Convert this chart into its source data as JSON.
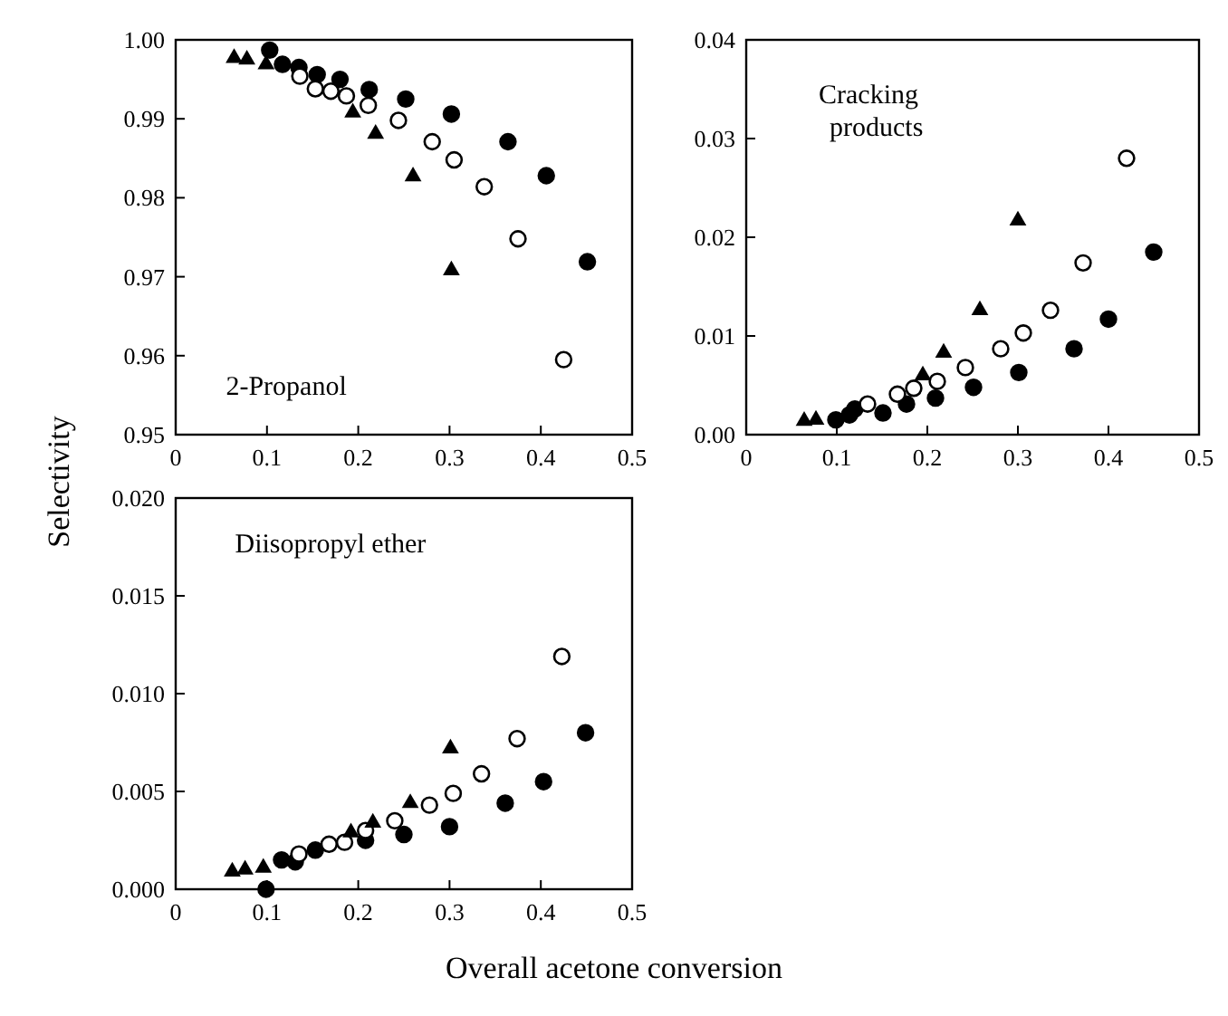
{
  "chart_data": [
    {
      "type": "scatter",
      "ylabel": "Selectivity",
      "xlim": [
        0,
        0.5
      ],
      "xticks": [
        0,
        0.1,
        0.2,
        0.3,
        0.4,
        0.5
      ],
      "ylim": [
        0.95,
        1.0
      ],
      "yticks": [
        {
          "value": 0.95,
          "label": "0.95"
        },
        {
          "value": 0.96,
          "label": "0.96"
        },
        {
          "value": 0.97,
          "label": "0.97"
        },
        {
          "value": 0.98,
          "label": "0.98"
        },
        {
          "value": 0.99,
          "label": "0.99"
        },
        {
          "value": 1.0,
          "label": "1.00"
        }
      ],
      "annotations": [
        "2-Propanol"
      ],
      "series": [
        {
          "color": "#000000",
          "marker": "circle",
          "x": [
            0.103,
            0.117,
            0.135,
            0.155,
            0.18,
            0.212,
            0.252,
            0.302,
            0.364,
            0.406,
            0.451
          ],
          "values": [
            0.9987,
            0.9969,
            0.9965,
            0.9956,
            0.995,
            0.9937,
            0.9925,
            0.9906,
            0.9871,
            0.9828,
            0.9719
          ]
        },
        {
          "color": "#ffffff",
          "marker": "circle",
          "x": [
            0.136,
            0.153,
            0.17,
            0.187,
            0.211,
            0.244,
            0.281,
            0.305,
            0.338,
            0.375,
            0.425
          ],
          "values": [
            0.9954,
            0.9938,
            0.9935,
            0.9929,
            0.9917,
            0.9898,
            0.9871,
            0.9848,
            0.9814,
            0.9748,
            0.9595
          ]
        },
        {
          "color": "#000000",
          "marker": "triangle",
          "x": [
            0.064,
            0.078,
            0.099,
            0.194,
            0.219,
            0.26,
            0.302
          ],
          "values": [
            0.9977,
            0.9975,
            0.9969,
            0.9908,
            0.9881,
            0.9827,
            0.9708
          ]
        }
      ]
    },
    {
      "type": "scatter",
      "xlim": [
        0,
        0.5
      ],
      "xticks": [
        0,
        0.1,
        0.2,
        0.3,
        0.4,
        0.5
      ],
      "ylim": [
        0,
        0.04
      ],
      "yticks": [
        {
          "value": 0,
          "label": "0.00"
        },
        {
          "value": 0.01,
          "label": "0.01"
        },
        {
          "value": 0.02,
          "label": "0.02"
        },
        {
          "value": 0.03,
          "label": "0.03"
        },
        {
          "value": 0.04,
          "label": "0.04"
        }
      ],
      "annotations": [
        "Cracking\nproducts"
      ],
      "series": [
        {
          "color": "#000000",
          "marker": "circle",
          "x": [
            0.099,
            0.114,
            0.12,
            0.151,
            0.177,
            0.209,
            0.251,
            0.301,
            0.362,
            0.4,
            0.45
          ],
          "values": [
            0.0015,
            0.002,
            0.0026,
            0.0022,
            0.0031,
            0.0037,
            0.0048,
            0.0063,
            0.0087,
            0.0117,
            0.0185
          ]
        },
        {
          "color": "#ffffff",
          "marker": "circle",
          "x": [
            0.134,
            0.167,
            0.185,
            0.211,
            0.242,
            0.281,
            0.306,
            0.336,
            0.372,
            0.42
          ],
          "values": [
            0.0031,
            0.0041,
            0.0047,
            0.0054,
            0.0068,
            0.0087,
            0.0103,
            0.0126,
            0.0174,
            0.028
          ]
        },
        {
          "color": "#000000",
          "marker": "triangle",
          "x": [
            0.064,
            0.077,
            0.195,
            0.218,
            0.258,
            0.3
          ],
          "values": [
            0.0014,
            0.0015,
            0.006,
            0.0083,
            0.0126,
            0.0217
          ]
        }
      ]
    },
    {
      "type": "scatter",
      "xlabel": "Overall acetone conversion",
      "xlim": [
        0,
        0.5
      ],
      "xticks": [
        0,
        0.1,
        0.2,
        0.3,
        0.4,
        0.5
      ],
      "ylim": [
        0,
        0.02
      ],
      "yticks": [
        {
          "value": 0,
          "label": "0.000"
        },
        {
          "value": 0.005,
          "label": "0.005"
        },
        {
          "value": 0.01,
          "label": "0.010"
        },
        {
          "value": 0.015,
          "label": "0.015"
        },
        {
          "value": 0.02,
          "label": "0.020"
        }
      ],
      "annotations": [
        "Diisopropyl ether"
      ],
      "series": [
        {
          "color": "#000000",
          "marker": "circle",
          "x": [
            0.099,
            0.116,
            0.131,
            0.153,
            0.208,
            0.25,
            0.3,
            0.361,
            0.403,
            0.449
          ],
          "values": [
            0,
            0.0015,
            0.0014,
            0.002,
            0.0025,
            0.0028,
            0.0032,
            0.0044,
            0.0055,
            0.008
          ]
        },
        {
          "color": "#ffffff",
          "marker": "circle",
          "x": [
            0.135,
            0.168,
            0.185,
            0.208,
            0.24,
            0.278,
            0.304,
            0.335,
            0.374,
            0.423
          ],
          "values": [
            0.0018,
            0.0023,
            0.0024,
            0.003,
            0.0035,
            0.0043,
            0.0049,
            0.0059,
            0.0077,
            0.0119
          ]
        },
        {
          "color": "#000000",
          "marker": "triangle",
          "x": [
            0.062,
            0.076,
            0.096,
            0.192,
            0.216,
            0.257,
            0.301
          ],
          "values": [
            0.0009,
            0.001,
            0.0011,
            0.0029,
            0.0034,
            0.0044,
            0.0072
          ]
        }
      ]
    }
  ]
}
